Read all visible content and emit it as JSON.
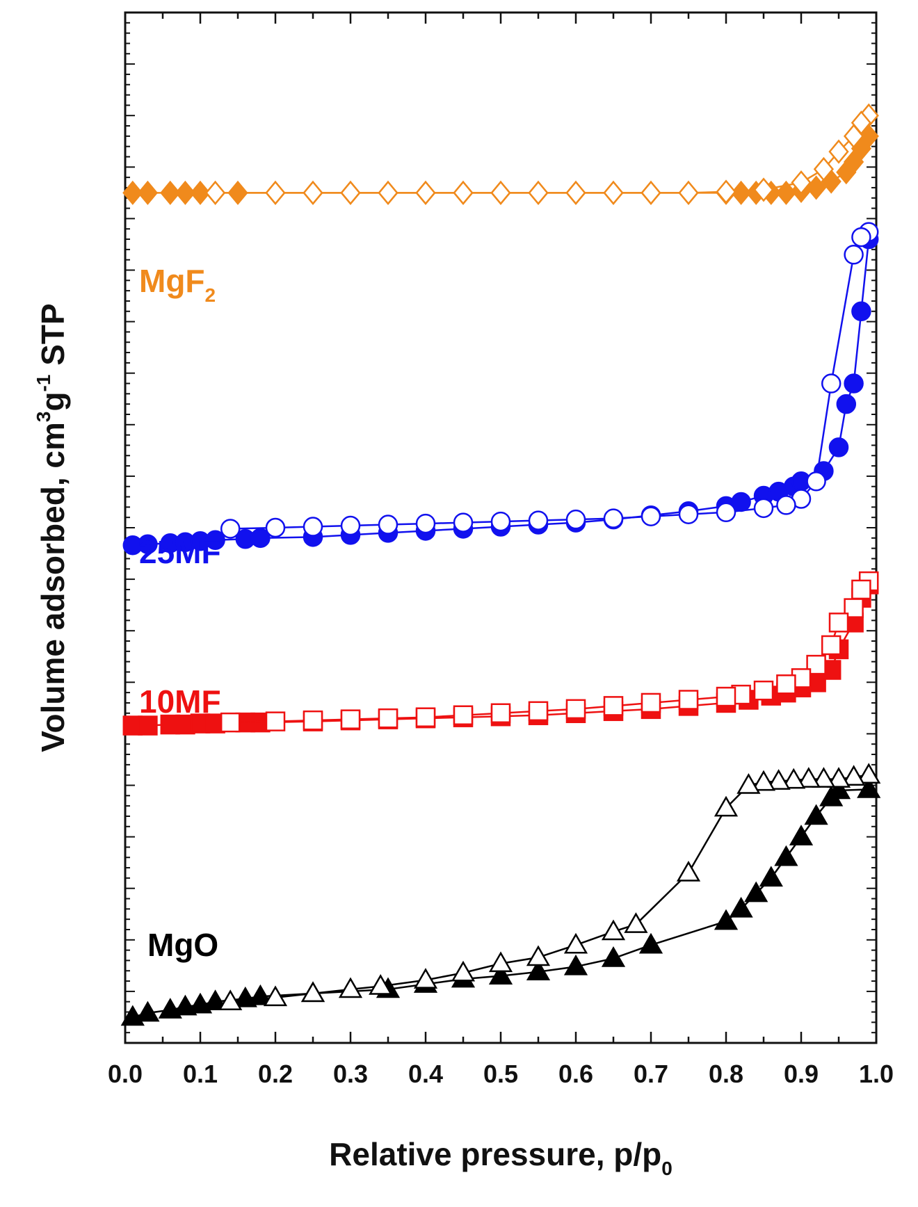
{
  "chart_data": {
    "type": "line",
    "title": "",
    "xlabel_main": "Relative pressure, p/p",
    "xlabel_sub": "0",
    "ylabel_parts": {
      "p1": "Volume adsorbed, cm",
      "sup1": "3",
      "p2": "g",
      "sup2": "-1",
      "p3": " STP"
    },
    "xlim": [
      0.0,
      1.0
    ],
    "ylim": [
      0,
      1000
    ],
    "y_tick_labels_shown": false,
    "x_ticks": [
      "0.0",
      "0.1",
      "0.2",
      "0.3",
      "0.4",
      "0.5",
      "0.6",
      "0.7",
      "0.8",
      "0.9",
      "1.0"
    ],
    "series": [
      {
        "name": "MgO",
        "label": "MgO",
        "color": "#000000",
        "marker": "triangle",
        "adsorption": {
          "x": [
            0.01,
            0.03,
            0.06,
            0.08,
            0.1,
            0.12,
            0.16,
            0.18,
            0.25,
            0.35,
            0.4,
            0.45,
            0.5,
            0.55,
            0.6,
            0.65,
            0.7,
            0.8,
            0.82,
            0.84,
            0.86,
            0.88,
            0.9,
            0.92,
            0.94,
            0.95,
            0.99
          ],
          "y": [
            25,
            29,
            32,
            35,
            37,
            40,
            43,
            45,
            48,
            52,
            57,
            62,
            65,
            69,
            74,
            82,
            95,
            118,
            130,
            145,
            160,
            180,
            200,
            220,
            238,
            245,
            246
          ]
        },
        "desorption": {
          "x": [
            0.99,
            0.97,
            0.95,
            0.93,
            0.91,
            0.89,
            0.87,
            0.85,
            0.83,
            0.8,
            0.75,
            0.68,
            0.65,
            0.6,
            0.55,
            0.5,
            0.45,
            0.4,
            0.34,
            0.3,
            0.25,
            0.2,
            0.14
          ],
          "y": [
            260,
            258,
            256,
            256,
            256,
            255,
            254,
            253,
            250,
            228,
            165,
            115,
            108,
            95,
            83,
            77,
            68,
            61,
            55,
            52,
            48,
            44,
            40
          ]
        }
      },
      {
        "name": "10MF",
        "label": "10MF",
        "color": "#ee1111",
        "marker": "square",
        "adsorption": {
          "x": [
            0.01,
            0.03,
            0.06,
            0.08,
            0.1,
            0.12,
            0.16,
            0.18,
            0.25,
            0.3,
            0.35,
            0.4,
            0.45,
            0.5,
            0.55,
            0.6,
            0.65,
            0.7,
            0.75,
            0.8,
            0.83,
            0.86,
            0.88,
            0.9,
            0.92,
            0.94,
            0.95,
            0.97,
            0.98,
            0.99
          ],
          "y": [
            308,
            308,
            309,
            309,
            310,
            310,
            311,
            311,
            312,
            313,
            314,
            315,
            316,
            317,
            318,
            320,
            322,
            324,
            327,
            330,
            333,
            337,
            340,
            345,
            350,
            362,
            382,
            408,
            432,
            445
          ]
        },
        "desorption": {
          "x": [
            0.99,
            0.98,
            0.97,
            0.95,
            0.94,
            0.92,
            0.9,
            0.88,
            0.85,
            0.82,
            0.8,
            0.75,
            0.7,
            0.65,
            0.6,
            0.55,
            0.5,
            0.45,
            0.4,
            0.35,
            0.3,
            0.25,
            0.2,
            0.14
          ],
          "y": [
            448,
            440,
            422,
            408,
            386,
            367,
            354,
            348,
            342,
            338,
            336,
            333,
            330,
            327,
            324,
            322,
            320,
            318,
            316,
            315,
            314,
            313,
            312,
            311
          ]
        }
      },
      {
        "name": "25MF",
        "label": "25MF",
        "color": "#1111ee",
        "marker": "circle",
        "adsorption": {
          "x": [
            0.01,
            0.03,
            0.06,
            0.08,
            0.1,
            0.12,
            0.16,
            0.18,
            0.25,
            0.3,
            0.35,
            0.4,
            0.45,
            0.5,
            0.55,
            0.6,
            0.65,
            0.7,
            0.75,
            0.8,
            0.82,
            0.85,
            0.87,
            0.89,
            0.9,
            0.93,
            0.95,
            0.96,
            0.97,
            0.98,
            0.99
          ],
          "y": [
            483,
            484,
            485,
            486,
            487,
            488,
            489,
            490,
            491,
            493,
            495,
            497,
            499,
            501,
            503,
            505,
            508,
            512,
            516,
            521,
            525,
            531,
            535,
            540,
            545,
            555,
            578,
            620,
            640,
            710,
            780
          ]
        },
        "desorption": {
          "x": [
            0.99,
            0.98,
            0.97,
            0.94,
            0.92,
            0.9,
            0.88,
            0.85,
            0.8,
            0.75,
            0.7,
            0.65,
            0.6,
            0.55,
            0.5,
            0.45,
            0.4,
            0.35,
            0.3,
            0.25,
            0.2,
            0.14
          ],
          "y": [
            787,
            782,
            765,
            640,
            545,
            528,
            522,
            519,
            515,
            513,
            511,
            509,
            508,
            507,
            506,
            505,
            504,
            503,
            502,
            501,
            500,
            499
          ]
        }
      },
      {
        "name": "MgF2",
        "label_main": "MgF",
        "label_sub": "2",
        "color": "#f08a1c",
        "marker": "diamond",
        "adsorption": {
          "x": [
            0.01,
            0.03,
            0.06,
            0.08,
            0.1,
            0.12,
            0.15,
            0.2,
            0.25,
            0.3,
            0.35,
            0.4,
            0.45,
            0.5,
            0.55,
            0.6,
            0.65,
            0.7,
            0.75,
            0.8,
            0.82,
            0.84,
            0.86,
            0.88,
            0.9,
            0.92,
            0.94,
            0.96,
            0.97,
            0.98,
            0.99
          ],
          "y": [
            825,
            825,
            825,
            825,
            825,
            825,
            825,
            825,
            825,
            825,
            825,
            825,
            825,
            825,
            825,
            825,
            825,
            825,
            825,
            825,
            825,
            825,
            825,
            825,
            827,
            830,
            836,
            845,
            855,
            868,
            880
          ]
        },
        "desorption": {
          "x": [
            0.99,
            0.98,
            0.97,
            0.95,
            0.93,
            0.9,
            0.85,
            0.8,
            0.75,
            0.7,
            0.65,
            0.6,
            0.55,
            0.5,
            0.45,
            0.4,
            0.35,
            0.3,
            0.25,
            0.2,
            0.12
          ],
          "y": [
            900,
            893,
            880,
            865,
            848,
            835,
            828,
            826,
            825,
            825,
            825,
            825,
            825,
            825,
            825,
            825,
            825,
            825,
            825,
            825,
            825
          ]
        }
      }
    ]
  }
}
